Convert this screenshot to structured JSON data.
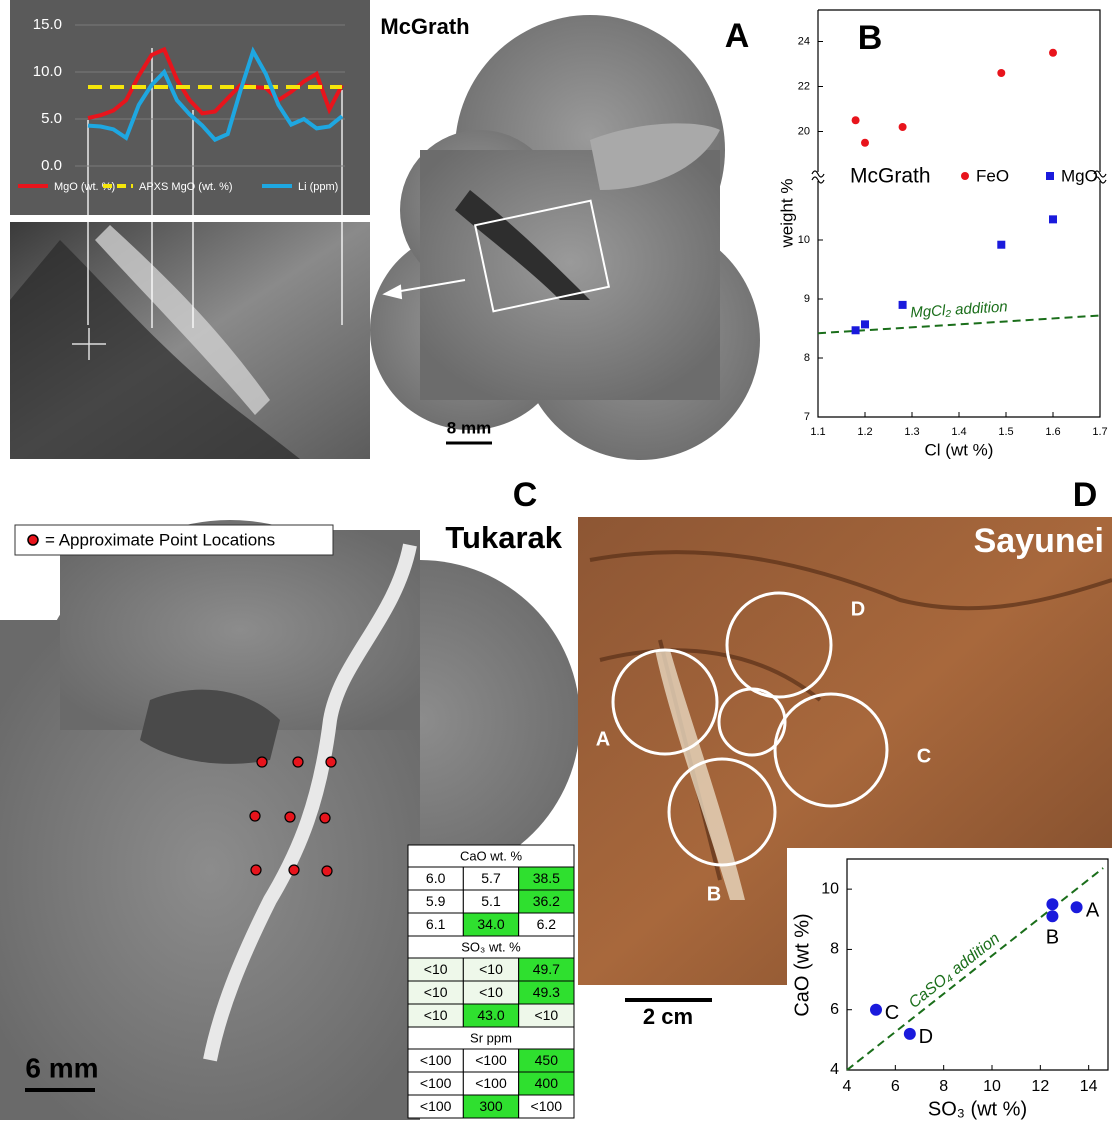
{
  "header": {
    "title": "McGrath"
  },
  "panels": {
    "a": {
      "letter": "A",
      "scale": "8 mm"
    },
    "b": {
      "letter": "B"
    },
    "c": {
      "letter": "C",
      "site": "Tukarak",
      "legend": "= Approximate Point Locations",
      "scale": "6 mm"
    },
    "d": {
      "letter": "D",
      "site": "Sayunei",
      "scale": "2 cm",
      "circle_labels": [
        "A",
        "B",
        "C",
        "D"
      ]
    }
  },
  "chart_data": [
    {
      "type": "line",
      "categories": [
        null,
        null,
        null,
        null,
        null,
        null,
        null,
        null,
        null,
        null,
        null,
        null,
        null,
        null,
        null,
        null,
        null,
        null,
        null,
        null,
        null
      ],
      "ylim": [
        0,
        15
      ],
      "yticks": [
        {
          "value": 0,
          "label": "0.0"
        },
        {
          "value": 5,
          "label": "5.0"
        },
        {
          "value": 10,
          "label": "10.0"
        },
        {
          "value": 15,
          "label": "15.0"
        }
      ],
      "grid": true,
      "series": [
        {
          "name": "MgO (wt. %)",
          "color": "#e8141c",
          "values": [
            5.1,
            5.4,
            5.9,
            7.0,
            9.6,
            11.8,
            12.4,
            9.2,
            7.0,
            5.6,
            5.8,
            7.2,
            8.6,
            8.4,
            8.3,
            7.0,
            7.9,
            9.0,
            9.8,
            6.0,
            8.6
          ]
        },
        {
          "name": "APXS MgO (wt. %)",
          "color": "#f5e60a",
          "dashed": true,
          "values": [
            8.4,
            8.4,
            8.4,
            8.4,
            8.4,
            8.4,
            8.4,
            8.4,
            8.4,
            8.4,
            8.4,
            8.4,
            8.4,
            8.4,
            8.4,
            8.4,
            8.4,
            8.4,
            8.4,
            8.4,
            8.4
          ]
        },
        {
          "name": "Li (ppm)",
          "color": "#1ea7e1",
          "values": [
            4.3,
            4.2,
            3.9,
            3.0,
            6.5,
            8.6,
            10.0,
            7.0,
            5.5,
            4.3,
            2.8,
            3.4,
            8.0,
            12.2,
            9.8,
            6.5,
            4.4,
            5.0,
            4.0,
            4.2,
            5.3
          ]
        }
      ]
    },
    {
      "type": "scatter",
      "legend_title": "McGrath",
      "xlabel": "Cl (wt %)",
      "ylabel": "weight %",
      "xlim": [
        1.1,
        1.7
      ],
      "xticks": [
        1.1,
        1.2,
        1.3,
        1.4,
        1.5,
        1.6,
        1.7
      ],
      "ylim": [
        7,
        11
      ],
      "yticks": [
        7,
        8,
        9,
        10
      ],
      "y2lim": [
        18.2,
        25.4
      ],
      "y2ticks": [
        20,
        22,
        24
      ],
      "series": [
        {
          "name": "FeO",
          "color": "#e8141c",
          "marker": "circle",
          "axis": "y2",
          "x": [
            1.18,
            1.2,
            1.28,
            1.49,
            1.6
          ],
          "values": [
            20.5,
            19.5,
            20.2,
            22.6,
            23.5
          ]
        },
        {
          "name": "MgO",
          "color": "#1a1adc",
          "marker": "square",
          "x": [
            1.18,
            1.2,
            1.28,
            1.49,
            1.6
          ],
          "values": [
            8.47,
            8.57,
            8.9,
            9.92,
            10.35
          ]
        }
      ],
      "lines": [
        {
          "label": "MgCl₂ addition",
          "color": "#1a6e1a",
          "x": [
            1.1,
            1.7
          ],
          "values": [
            8.42,
            8.72
          ]
        }
      ]
    },
    {
      "type": "scatter",
      "xlabel": "SO₃ (wt %)",
      "ylabel": "CaO (wt %)",
      "xlim": [
        4,
        14.8
      ],
      "xticks": [
        4,
        6,
        8,
        10,
        12,
        14
      ],
      "ylim": [
        4,
        11
      ],
      "yticks": [
        4,
        6,
        8,
        10
      ],
      "color": "#1a1adc",
      "x": [
        13.5,
        12.5,
        12.5,
        5.2,
        6.6
      ],
      "values": [
        9.4,
        9.5,
        9.1,
        6.0,
        5.2
      ],
      "point_labels": [
        "A",
        null,
        "B",
        "C",
        "D"
      ],
      "lines": [
        {
          "label": "CaSO₄ addition",
          "color": "#1a6e1a",
          "x": [
            4,
            14.6
          ],
          "values": [
            4,
            10.7
          ]
        }
      ]
    }
  ],
  "table": {
    "highlight_color": "#2fe02f",
    "sections": [
      {
        "title": "CaO wt. %",
        "rows": [
          [
            "6.0",
            "5.7",
            "38.5"
          ],
          [
            "5.9",
            "5.1",
            "36.2"
          ],
          [
            "6.1",
            "34.0",
            "6.2"
          ]
        ],
        "highlight": [
          [
            false,
            false,
            true
          ],
          [
            false,
            false,
            true
          ],
          [
            false,
            true,
            false
          ]
        ]
      },
      {
        "title": "SO₃ wt. %",
        "rows": [
          [
            "<10",
            "<10",
            "49.7"
          ],
          [
            "<10",
            "<10",
            "49.3"
          ],
          [
            "<10",
            "43.0",
            "<10"
          ]
        ],
        "highlight": [
          [
            false,
            false,
            true
          ],
          [
            false,
            false,
            true
          ],
          [
            false,
            true,
            false
          ]
        ]
      },
      {
        "title": "Sr ppm",
        "rows": [
          [
            "<100",
            "<100",
            "450"
          ],
          [
            "<100",
            "<100",
            "400"
          ],
          [
            "<100",
            "300",
            "<100"
          ]
        ],
        "highlight": [
          [
            false,
            false,
            true
          ],
          [
            false,
            false,
            true
          ],
          [
            false,
            true,
            false
          ]
        ]
      }
    ]
  }
}
